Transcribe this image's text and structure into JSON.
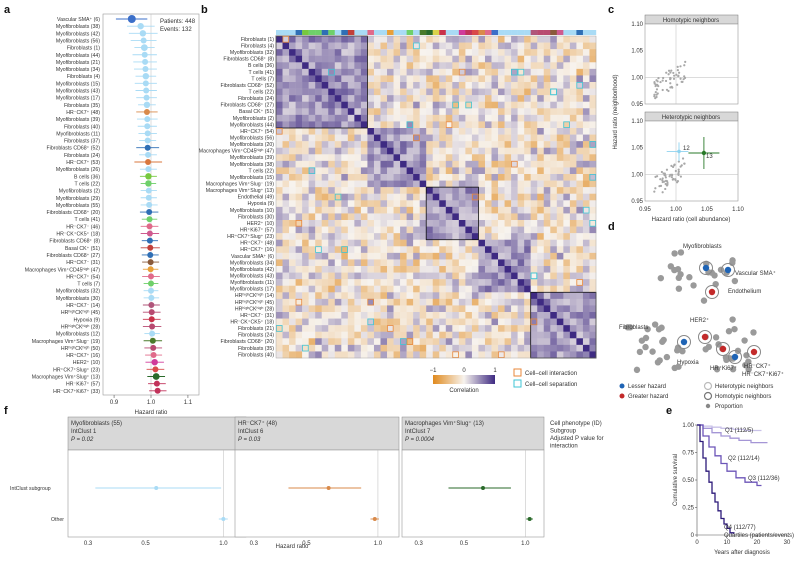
{
  "panels": {
    "a": "a",
    "b": "b",
    "c": "c",
    "d": "d",
    "e": "e",
    "f": "f"
  },
  "panel_a": {
    "patients_label": "Patients: 448",
    "events_label": "Events: 132",
    "xlabel": "Hazard ratio",
    "ticks": [
      0.9,
      1.0,
      1.1
    ],
    "rows": [
      {
        "label": "Vascular SMA⁺ (6)",
        "hr": 0.948,
        "lo": 0.905,
        "hi": 0.99,
        "color": "#3b6fc9",
        "size": 4.0
      },
      {
        "label": "Myofibroblasts (38)",
        "hr": 0.972,
        "lo": 0.935,
        "hi": 1.01,
        "color": "#a9dbf5",
        "size": 3.2
      },
      {
        "label": "Myofibroblasts (42)",
        "hr": 0.978,
        "lo": 0.94,
        "hi": 1.018,
        "color": "#a9dbf5",
        "size": 3.2
      },
      {
        "label": "Myofibroblasts (56)",
        "hr": 0.98,
        "lo": 0.945,
        "hi": 1.015,
        "color": "#a9dbf5",
        "size": 3.0
      },
      {
        "label": "Fibroblasts (1)",
        "hr": 0.982,
        "lo": 0.955,
        "hi": 1.01,
        "color": "#a9dbf5",
        "size": 3.4
      },
      {
        "label": "Myofibroblasts (44)",
        "hr": 0.983,
        "lo": 0.95,
        "hi": 1.016,
        "color": "#a9dbf5",
        "size": 3.0
      },
      {
        "label": "Myofibroblasts (21)",
        "hr": 0.984,
        "lo": 0.952,
        "hi": 1.016,
        "color": "#a9dbf5",
        "size": 3.0
      },
      {
        "label": "Myofibroblasts (34)",
        "hr": 0.985,
        "lo": 0.954,
        "hi": 1.016,
        "color": "#a9dbf5",
        "size": 3.0
      },
      {
        "label": "Fibroblasts (4)",
        "hr": 0.986,
        "lo": 0.958,
        "hi": 1.014,
        "color": "#a9dbf5",
        "size": 3.2
      },
      {
        "label": "Myofibroblasts (15)",
        "hr": 0.986,
        "lo": 0.956,
        "hi": 1.016,
        "color": "#a9dbf5",
        "size": 3.0
      },
      {
        "label": "Myofibroblasts (43)",
        "hr": 0.987,
        "lo": 0.958,
        "hi": 1.016,
        "color": "#a9dbf5",
        "size": 3.0
      },
      {
        "label": "Myofibroblasts (17)",
        "hr": 0.988,
        "lo": 0.96,
        "hi": 1.016,
        "color": "#a9dbf5",
        "size": 3.0
      },
      {
        "label": "Fibroblasts (35)",
        "hr": 0.989,
        "lo": 0.965,
        "hi": 1.013,
        "color": "#a9dbf5",
        "size": 3.2
      },
      {
        "label": "HR⁻CK7⁺ (48)",
        "hr": 0.989,
        "lo": 0.96,
        "hi": 1.018,
        "color": "#d98a4a",
        "size": 3.0
      },
      {
        "label": "Myofibroblasts (39)",
        "hr": 0.99,
        "lo": 0.962,
        "hi": 1.018,
        "color": "#a9dbf5",
        "size": 3.0
      },
      {
        "label": "Fibroblasts (40)",
        "hr": 0.99,
        "lo": 0.964,
        "hi": 1.016,
        "color": "#a9dbf5",
        "size": 3.0
      },
      {
        "label": "Myofibroblasts (11)",
        "hr": 0.991,
        "lo": 0.966,
        "hi": 1.016,
        "color": "#a9dbf5",
        "size": 3.0
      },
      {
        "label": "Fibroblasts (37)",
        "hr": 0.991,
        "lo": 0.968,
        "hi": 1.014,
        "color": "#a9dbf5",
        "size": 3.0
      },
      {
        "label": "Fibroblasts CD68⁺ (52)",
        "hr": 0.991,
        "lo": 0.96,
        "hi": 1.022,
        "color": "#2f6fb5",
        "size": 3.0
      },
      {
        "label": "Fibroblasts (24)",
        "hr": 0.992,
        "lo": 0.968,
        "hi": 1.016,
        "color": "#a9dbf5",
        "size": 3.0
      },
      {
        "label": "HR⁻CK7⁺ (53)",
        "hr": 0.992,
        "lo": 0.955,
        "hi": 1.03,
        "color": "#d9773e",
        "size": 3.0
      },
      {
        "label": "Myofibroblasts (26)",
        "hr": 0.993,
        "lo": 0.97,
        "hi": 1.016,
        "color": "#a9dbf5",
        "size": 3.0
      },
      {
        "label": "B cells (36)",
        "hr": 0.993,
        "lo": 0.97,
        "hi": 1.016,
        "color": "#77c93e",
        "size": 3.2
      },
      {
        "label": "T cells (22)",
        "hr": 0.993,
        "lo": 0.972,
        "hi": 1.014,
        "color": "#6fd06a",
        "size": 3.2
      },
      {
        "label": "Myofibroblasts (2)",
        "hr": 0.994,
        "lo": 0.972,
        "hi": 1.016,
        "color": "#a9dbf5",
        "size": 3.0
      },
      {
        "label": "Myofibroblasts (29)",
        "hr": 0.994,
        "lo": 0.972,
        "hi": 1.016,
        "color": "#a9dbf5",
        "size": 3.0
      },
      {
        "label": "Myofibroblasts (55)",
        "hr": 0.995,
        "lo": 0.972,
        "hi": 1.018,
        "color": "#a9dbf5",
        "size": 3.0
      },
      {
        "label": "Fibroblasts CD68⁺ (20)",
        "hr": 0.995,
        "lo": 0.97,
        "hi": 1.02,
        "color": "#2f6fb5",
        "size": 3.0
      },
      {
        "label": "T cells (41)",
        "hr": 0.996,
        "lo": 0.975,
        "hi": 1.017,
        "color": "#6fd06a",
        "size": 3.0
      },
      {
        "label": "HR⁻CK7⁻ (46)",
        "hr": 0.996,
        "lo": 0.972,
        "hi": 1.02,
        "color": "#e06a8a",
        "size": 3.0
      },
      {
        "label": "HR⁻CK⁺CK5⁺ (18)",
        "hr": 0.997,
        "lo": 0.972,
        "hi": 1.022,
        "color": "#cf5a8f",
        "size": 3.0
      },
      {
        "label": "Fibroblasts CD68⁺ (8)",
        "hr": 0.997,
        "lo": 0.975,
        "hi": 1.019,
        "color": "#2f6fb5",
        "size": 3.0
      },
      {
        "label": "Basal CK⁺ (51)",
        "hr": 0.998,
        "lo": 0.972,
        "hi": 1.024,
        "color": "#c1403a",
        "size": 3.0
      },
      {
        "label": "Fibroblasts CD68⁺ (27)",
        "hr": 0.998,
        "lo": 0.975,
        "hi": 1.021,
        "color": "#2f6fb5",
        "size": 3.0
      },
      {
        "label": "HR⁺CK7⁻ (31)",
        "hr": 0.999,
        "lo": 0.976,
        "hi": 1.022,
        "color": "#8a5a3a",
        "size": 3.0
      },
      {
        "label": "Macrophages Vim⁺CD45ʰⁱᵍʰ (47)",
        "hr": 0.999,
        "lo": 0.978,
        "hi": 1.02,
        "color": "#e8a03a",
        "size": 3.0
      },
      {
        "label": "HR⁺CK7⁺ (54)",
        "hr": 1.0,
        "lo": 0.976,
        "hi": 1.024,
        "color": "#e06a8a",
        "size": 3.0
      },
      {
        "label": "T cells (7)",
        "hr": 1.0,
        "lo": 0.98,
        "hi": 1.02,
        "color": "#6fd06a",
        "size": 3.0
      },
      {
        "label": "Myofibroblasts (32)",
        "hr": 1.0,
        "lo": 0.98,
        "hi": 1.02,
        "color": "#a9dbf5",
        "size": 3.0
      },
      {
        "label": "Myofibroblasts (30)",
        "hr": 1.001,
        "lo": 0.98,
        "hi": 1.022,
        "color": "#a9dbf5",
        "size": 3.0
      },
      {
        "label": "HR⁺CK7⁻ (14)",
        "hr": 1.001,
        "lo": 0.978,
        "hi": 1.024,
        "color": "#b0557a",
        "size": 3.0
      },
      {
        "label": "HRʰⁱᵍʰCKʰⁱᵍʰ (45)",
        "hr": 1.002,
        "lo": 0.978,
        "hi": 1.026,
        "color": "#b84a70",
        "size": 3.0
      },
      {
        "label": "Hypoxia (9)",
        "hr": 1.002,
        "lo": 0.978,
        "hi": 1.026,
        "color": "#c9324a",
        "size": 3.0
      },
      {
        "label": "HRʰⁱᵍʰCKʰⁱᵍʰ (28)",
        "hr": 1.003,
        "lo": 0.978,
        "hi": 1.028,
        "color": "#b84a70",
        "size": 3.0
      },
      {
        "label": "Myofibroblasts (12)",
        "hr": 1.003,
        "lo": 0.982,
        "hi": 1.024,
        "color": "#a9dbf5",
        "size": 3.0
      },
      {
        "label": "Macrophages Vim⁺Slug⁻ (19)",
        "hr": 1.005,
        "lo": 0.98,
        "hi": 1.03,
        "color": "#4a7a2a",
        "size": 3.0
      },
      {
        "label": "HRʰⁱᵍʰCKʰⁱᵍʰ (50)",
        "hr": 1.006,
        "lo": 0.982,
        "hi": 1.03,
        "color": "#b84a70",
        "size": 3.0
      },
      {
        "label": "HR⁺CK7⁺ (16)",
        "hr": 1.007,
        "lo": 0.984,
        "hi": 1.03,
        "color": "#e06a8a",
        "size": 3.0
      },
      {
        "label": "HER2⁺ (10)",
        "hr": 1.01,
        "lo": 0.985,
        "hi": 1.035,
        "color": "#d03a9a",
        "size": 3.2
      },
      {
        "label": "HR⁺CK7⁺Slug⁺ (23)",
        "hr": 1.012,
        "lo": 0.988,
        "hi": 1.036,
        "color": "#d94a4a",
        "size": 3.0
      },
      {
        "label": "Macrophages Vim⁺Slug⁺ (13)",
        "hr": 1.014,
        "lo": 0.99,
        "hi": 1.038,
        "color": "#2a6a2a",
        "size": 3.4
      },
      {
        "label": "HR⁻Ki67⁺ (57)",
        "hr": 1.016,
        "lo": 0.992,
        "hi": 1.04,
        "color": "#c1325a",
        "size": 3.0
      },
      {
        "label": "HR⁻CK7⁺Ki67⁺ (33)",
        "hr": 1.018,
        "lo": 0.995,
        "hi": 1.042,
        "color": "#c1325a",
        "size": 3.0
      }
    ]
  },
  "panel_b": {
    "row_labels": [
      "Fibroblasts (1)",
      "Fibroblasts (4)",
      "Myofibroblasts (32)",
      "Fibroblasts CD68⁺ (8)",
      "B cells (36)",
      "T cells (41)",
      "T cells (7)",
      "Fibroblasts CD68⁺ (52)",
      "T cells (22)",
      "Fibroblasts (24)",
      "Fibroblasts CD68⁺ (27)",
      "Basal CK⁺ (51)",
      "Myofibroblasts (2)",
      "Myofibroblasts (44)",
      "HR⁺CK7⁺ (54)",
      "Myofibroblasts (56)",
      "Myofibroblasts (20)",
      "Macrophages Vim⁺CD45ʰⁱᵍʰ (47)",
      "Myofibroblasts (39)",
      "Myofibroblasts (38)",
      "T cells (22)",
      "Myofibroblasts (15)",
      "Macrophages Vim⁺Slug⁻ (19)",
      "Macrophages Vim⁺Slug⁺ (13)",
      "Endothelial (49)",
      "Hypoxia (9)",
      "Myofibroblasts (10)",
      "Fibroblasts (30)",
      "HER2⁺ (10)",
      "HR⁺Ki67⁺ (57)",
      "HR⁺CK7⁺Slug⁺ (23)",
      "HR⁺CK7⁺ (48)",
      "HR⁺CK7⁺ (16)",
      "Vascular SMA⁺ (6)",
      "Myofibroblasts (34)",
      "Myofibroblasts (42)",
      "Myofibroblasts (43)",
      "Myofibroblasts (11)",
      "Myofibroblasts (17)",
      "HRʰⁱᵍʰCKʰⁱᵍʰ (14)",
      "HRʰⁱᵍʰCKʰⁱᵍʰ (45)",
      "HRʰⁱᵍʰCKʰⁱᵍʰ (28)",
      "HR⁺CK7⁻ (31)",
      "HR⁻CK⁺CK5⁺ (18)",
      "Fibroblasts (21)",
      "Fibroblasts (24)",
      "Fibroblasts CD68⁺ (20)",
      "Fibroblasts (35)",
      "Fibroblasts (40)"
    ],
    "colorbar_label": "Correlation",
    "colorbar_ticks": [
      "−1",
      "0",
      "1"
    ],
    "legend_interaction": "Cell–cell interaction",
    "legend_separation": "Cell–cell separation",
    "colors": {
      "neg": "#e08a1e",
      "zero": "#f7f3ee",
      "pos": "#3e2a82",
      "interaction": "#e8873a",
      "separation": "#3fc4d4"
    }
  },
  "panel_c": {
    "top_title": "Homotypic neighbors",
    "bottom_title": "Heterotypic neighbors",
    "ylabel": "Hazard ratio (neighborhood)",
    "xlabel": "Hazard ratio (cell abundance)",
    "xticks": [
      "0.95",
      "1.00",
      "1.05",
      "1.10"
    ],
    "yticks_top": [
      "1.10",
      "1.05",
      "1.00",
      "0.95"
    ],
    "yticks_bottom": [
      "1.10",
      "1.05",
      "1.00",
      "0.95"
    ],
    "label_12": "12",
    "label_13": "13"
  },
  "panel_d": {
    "myofibroblasts": "Myofibroblasts",
    "vascular": "Vascular SMA⁺",
    "endothelium": "Endothelium",
    "fibroblasts": "Fibroblasts",
    "her2": "HER2⁺",
    "hypoxia": "Hypoxia",
    "hrki67": "HR⁺Ki67⁺",
    "hrck7": "HR⁻CK7⁺",
    "hrck7ki67": "HR⁻CK7⁺Ki67⁺",
    "legend": {
      "lesser": "Lesser hazard",
      "greater": "Greater hazard",
      "hetero": "Heterotypic neighbors",
      "homo": "Homotypic neighbors",
      "proportion": "Proportion"
    }
  },
  "panel_e": {
    "ylabel": "Cumulative survival",
    "xlabel": "Years after diagnosis",
    "xticks": [
      "0",
      "10",
      "20",
      "30"
    ],
    "yticks": [
      "1.00",
      "0.75",
      "0.50",
      "0.25",
      "0"
    ],
    "quartile_note": "Quartiles (patients/events)",
    "series": [
      {
        "name": "Q1 (112/5)",
        "color": "#c9c2e8",
        "points": [
          [
            0,
            1.0
          ],
          [
            2,
            0.99
          ],
          [
            5,
            0.98
          ],
          [
            8,
            0.97
          ],
          [
            12,
            0.96
          ],
          [
            16,
            0.95
          ],
          [
            20,
            0.95
          ]
        ]
      },
      {
        "name": "Q2 (112/14)",
        "color": "#a596d6",
        "points": [
          [
            0,
            1.0
          ],
          [
            2,
            0.97
          ],
          [
            5,
            0.93
          ],
          [
            8,
            0.9
          ],
          [
            11,
            0.88
          ],
          [
            14,
            0.86
          ],
          [
            18,
            0.84
          ],
          [
            22,
            0.84
          ]
        ]
      },
      {
        "name": "Q3 (112/36)",
        "color": "#6c55b8",
        "points": [
          [
            0,
            1.0
          ],
          [
            2,
            0.9
          ],
          [
            4,
            0.8
          ],
          [
            6,
            0.72
          ],
          [
            8,
            0.65
          ],
          [
            10,
            0.58
          ],
          [
            13,
            0.52
          ],
          [
            16,
            0.48
          ],
          [
            20,
            0.45
          ]
        ]
      },
      {
        "name": "Q4 (112/77)",
        "color": "#2d1a7a",
        "points": [
          [
            0,
            1.0
          ],
          [
            1,
            0.85
          ],
          [
            2,
            0.7
          ],
          [
            3,
            0.58
          ],
          [
            4,
            0.48
          ],
          [
            5,
            0.38
          ],
          [
            6,
            0.3
          ],
          [
            7,
            0.22
          ],
          [
            8,
            0.15
          ],
          [
            9,
            0.1
          ],
          [
            10,
            0.06
          ],
          [
            11,
            0.02
          ]
        ]
      }
    ]
  },
  "panel_f": {
    "headers": [
      {
        "line1": "Myofibroblasts (55)",
        "line2": "IntClust 1",
        "line3": "P = 0.02"
      },
      {
        "line1": "HR⁻CK7⁺ (48)",
        "line2": "IntClust 6",
        "line3": "P = 0.03"
      },
      {
        "line1": "Macrophages Vim⁺Slug⁺ (13)",
        "line2": "IntClust 7",
        "line3": "P = 0.0004"
      }
    ],
    "legend_lines": [
      "Cell phenotype (ID)",
      "Subgroup",
      "Adjusted P value for",
      "interaction"
    ],
    "row_subgroup": "IntClust subgroup",
    "row_other": "Other",
    "xlabel": "Hazard ratio",
    "xticks": [
      "0.3",
      "0.5",
      "1.0"
    ],
    "points": [
      {
        "subgroup": {
          "hr": 0.55,
          "lo": 0.32,
          "hi": 0.98
        },
        "other": {
          "hr": 1.0,
          "lo": 0.96,
          "hi": 1.04
        },
        "color": "#a9dbf5"
      },
      {
        "subgroup": {
          "hr": 0.62,
          "lo": 0.42,
          "hi": 0.85
        },
        "other": {
          "hr": 0.97,
          "lo": 0.93,
          "hi": 1.01
        },
        "color": "#d98a4a"
      },
      {
        "subgroup": {
          "hr": 0.62,
          "lo": 0.42,
          "hi": 0.85
        },
        "other": {
          "hr": 1.05,
          "lo": 1.01,
          "hi": 1.09
        },
        "color": "#2a6a2a"
      }
    ]
  }
}
